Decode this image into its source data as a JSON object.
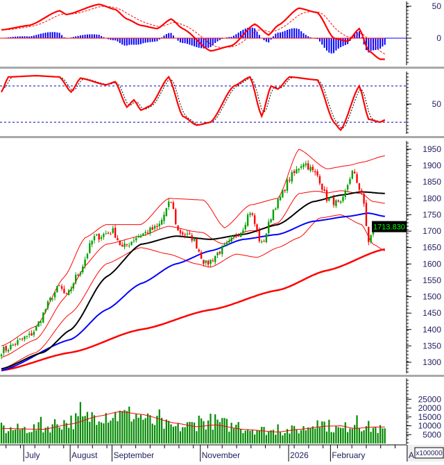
{
  "chart_data": {
    "type": "candlestick-with-indicators",
    "bar_count": 166,
    "last_price_label": "1713.830",
    "colors": {
      "up": "#00a000",
      "down": "#ff0000",
      "ma20": "#ff0000",
      "ma50": "#000000",
      "ma100": "#0000ff",
      "ma200": "#ff0000",
      "bollinger": "#ff0000",
      "macd_hist": "#0000ff",
      "volume": "#008800",
      "last_price_bg": "#000000",
      "last_price_fg": "#00ff00"
    },
    "x_axis": {
      "months": [
        {
          "label": "July",
          "bar": 9
        },
        {
          "label": "August",
          "bar": 29
        },
        {
          "label": "September",
          "bar": 47
        },
        {
          "label": "November",
          "bar": 85
        },
        {
          "label": "2026",
          "bar": 123
        },
        {
          "label": "February",
          "bar": 141
        },
        {
          "label": "A",
          "bar": 174
        }
      ]
    },
    "price": {
      "ylim": [
        1270,
        1980
      ],
      "ticks": [
        "1950",
        "1900",
        "1850",
        "1800",
        "1750",
        "1700",
        "1650",
        "1600",
        "1550",
        "1500",
        "1450",
        "1400",
        "1350",
        "1300"
      ],
      "close_keypoints": [
        [
          0,
          1335
        ],
        [
          12,
          1380
        ],
        [
          25,
          1530
        ],
        [
          28,
          1500
        ],
        [
          33,
          1570
        ],
        [
          40,
          1680
        ],
        [
          48,
          1700
        ],
        [
          52,
          1650
        ],
        [
          60,
          1690
        ],
        [
          67,
          1710
        ],
        [
          73,
          1790
        ],
        [
          76,
          1700
        ],
        [
          82,
          1680
        ],
        [
          88,
          1600
        ],
        [
          96,
          1650
        ],
        [
          103,
          1700
        ],
        [
          107,
          1760
        ],
        [
          112,
          1660
        ],
        [
          118,
          1780
        ],
        [
          125,
          1870
        ],
        [
          130,
          1910
        ],
        [
          136,
          1870
        ],
        [
          140,
          1800
        ],
        [
          146,
          1780
        ],
        [
          151,
          1880
        ],
        [
          155,
          1820
        ],
        [
          158,
          1670
        ],
        [
          161,
          1720
        ],
        [
          165,
          1714
        ]
      ],
      "ma200_keypoints": [
        [
          0,
          1275
        ],
        [
          30,
          1330
        ],
        [
          60,
          1400
        ],
        [
          90,
          1460
        ],
        [
          119,
          1520
        ],
        [
          140,
          1580
        ],
        [
          165,
          1645
        ]
      ],
      "ma100_keypoints": [
        [
          0,
          1275
        ],
        [
          30,
          1370
        ],
        [
          45,
          1460
        ],
        [
          60,
          1540
        ],
        [
          75,
          1600
        ],
        [
          90,
          1640
        ],
        [
          104,
          1675
        ],
        [
          119,
          1690
        ],
        [
          134,
          1730
        ],
        [
          149,
          1745
        ],
        [
          158,
          1755
        ],
        [
          165,
          1745
        ]
      ],
      "ma50_keypoints": [
        [
          0,
          1280
        ],
        [
          18,
          1330
        ],
        [
          30,
          1400
        ],
        [
          45,
          1560
        ],
        [
          60,
          1660
        ],
        [
          75,
          1685
        ],
        [
          90,
          1675
        ],
        [
          104,
          1690
        ],
        [
          119,
          1720
        ],
        [
          134,
          1790
        ],
        [
          146,
          1810
        ],
        [
          155,
          1820
        ],
        [
          165,
          1815
        ]
      ],
      "bb_upper_keypoints": [
        [
          0,
          1350
        ],
        [
          15,
          1410
        ],
        [
          27,
          1560
        ],
        [
          36,
          1680
        ],
        [
          45,
          1720
        ],
        [
          60,
          1720
        ],
        [
          72,
          1800
        ],
        [
          87,
          1795
        ],
        [
          96,
          1710
        ],
        [
          107,
          1780
        ],
        [
          119,
          1800
        ],
        [
          128,
          1950
        ],
        [
          140,
          1890
        ],
        [
          149,
          1900
        ],
        [
          155,
          1910
        ],
        [
          165,
          1930
        ]
      ],
      "bb_lower_keypoints": [
        [
          0,
          1280
        ],
        [
          15,
          1330
        ],
        [
          30,
          1450
        ],
        [
          45,
          1600
        ],
        [
          60,
          1650
        ],
        [
          72,
          1630
        ],
        [
          84,
          1600
        ],
        [
          90,
          1590
        ],
        [
          101,
          1630
        ],
        [
          110,
          1620
        ],
        [
          119,
          1650
        ],
        [
          128,
          1680
        ],
        [
          137,
          1740
        ],
        [
          146,
          1750
        ],
        [
          155,
          1720
        ],
        [
          160,
          1660
        ],
        [
          165,
          1640
        ]
      ]
    },
    "volume": {
      "unit_label": "x100000",
      "ylim": [
        0,
        29000
      ],
      "ticks": [
        "25000",
        "20000",
        "15000",
        "10000",
        "5000"
      ],
      "volume_keypoints": [
        [
          0,
          8000
        ],
        [
          18,
          9000
        ],
        [
          25,
          12000
        ],
        [
          36,
          14000
        ],
        [
          42,
          18000
        ],
        [
          51,
          16000
        ],
        [
          57,
          17000
        ],
        [
          66,
          12000
        ],
        [
          75,
          9000
        ],
        [
          90,
          13000
        ],
        [
          103,
          9000
        ],
        [
          119,
          7000
        ],
        [
          128,
          8000
        ],
        [
          137,
          12000
        ],
        [
          146,
          8000
        ],
        [
          152,
          12000
        ],
        [
          160,
          9000
        ],
        [
          165,
          7500
        ]
      ],
      "ma_keypoints": [
        [
          0,
          8500
        ],
        [
          18,
          8000
        ],
        [
          30,
          11000
        ],
        [
          42,
          15500
        ],
        [
          51,
          18000
        ],
        [
          60,
          16500
        ],
        [
          75,
          11500
        ],
        [
          84,
          9500
        ],
        [
          92,
          10500
        ],
        [
          104,
          8000
        ],
        [
          119,
          6500
        ],
        [
          128,
          8000
        ],
        [
          140,
          9800
        ],
        [
          146,
          10000
        ],
        [
          152,
          8500
        ],
        [
          160,
          9300
        ],
        [
          165,
          9300
        ]
      ]
    },
    "macd": {
      "ylim": [
        -40,
        58
      ],
      "ticks": [
        "50",
        "0"
      ],
      "macd_keypoints": [
        [
          0,
          13
        ],
        [
          12,
          20
        ],
        [
          25,
          43
        ],
        [
          28,
          37
        ],
        [
          42,
          53
        ],
        [
          49,
          45
        ],
        [
          54,
          30
        ],
        [
          60,
          20
        ],
        [
          67,
          15
        ],
        [
          73,
          30
        ],
        [
          78,
          15
        ],
        [
          90,
          -20
        ],
        [
          99,
          -12
        ],
        [
          109,
          22
        ],
        [
          115,
          5
        ],
        [
          119,
          20
        ],
        [
          128,
          47
        ],
        [
          136,
          40
        ],
        [
          143,
          0
        ],
        [
          149,
          -5
        ],
        [
          154,
          15
        ],
        [
          158,
          -20
        ],
        [
          163,
          -33
        ],
        [
          165,
          -33
        ]
      ]
    },
    "stochastic": {
      "ylim": [
        0,
        110
      ],
      "ticks": [
        "50"
      ],
      "levels": [
        80,
        20
      ],
      "k_keypoints": [
        [
          0,
          70
        ],
        [
          3,
          95
        ],
        [
          15,
          97
        ],
        [
          25,
          95
        ],
        [
          30,
          70
        ],
        [
          34,
          93
        ],
        [
          45,
          82
        ],
        [
          49,
          87
        ],
        [
          54,
          45
        ],
        [
          57,
          57
        ],
        [
          60,
          40
        ],
        [
          64,
          47
        ],
        [
          72,
          95
        ],
        [
          78,
          30
        ],
        [
          84,
          15
        ],
        [
          90,
          20
        ],
        [
          100,
          80
        ],
        [
          107,
          95
        ],
        [
          112,
          30
        ],
        [
          116,
          80
        ],
        [
          119,
          75
        ],
        [
          124,
          95
        ],
        [
          136,
          90
        ],
        [
          143,
          20
        ],
        [
          146,
          7
        ],
        [
          154,
          80
        ],
        [
          158,
          25
        ],
        [
          163,
          20
        ],
        [
          165,
          24
        ]
      ]
    }
  }
}
